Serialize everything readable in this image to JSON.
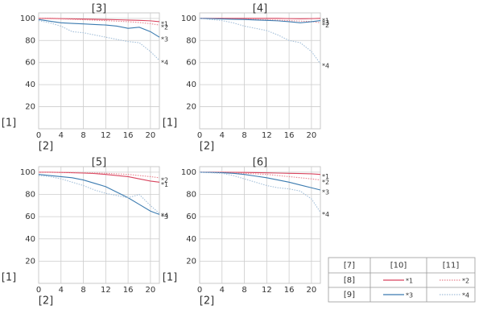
{
  "chart_data": [
    {
      "type": "line",
      "title": "[3]",
      "x_label": "[2]",
      "y_label": "[1]",
      "x": [
        0,
        2,
        4,
        6,
        8,
        10,
        12,
        14,
        16,
        18,
        20,
        21.6
      ],
      "xlim": [
        0,
        21.6
      ],
      "xticks": [
        0,
        4,
        8,
        12,
        16,
        20
      ],
      "ylim": [
        0,
        105
      ],
      "yticks": [
        20,
        40,
        60,
        80,
        100
      ],
      "grid": true,
      "series": [
        {
          "name": "*1",
          "color": "#d9455f",
          "dashed": false,
          "values": [
            100,
            100,
            99.8,
            99.6,
            99.4,
            99.2,
            99,
            98.8,
            98.5,
            98.2,
            97.8,
            97
          ]
        },
        {
          "name": "*2",
          "color": "#e8848f",
          "dashed": true,
          "values": [
            100,
            99.8,
            99.5,
            99.2,
            98.8,
            98.4,
            98,
            97.5,
            97,
            96.3,
            95.2,
            94
          ]
        },
        {
          "name": "*3",
          "color": "#3b7bb0",
          "dashed": false,
          "values": [
            99,
            97.5,
            96,
            95.5,
            95,
            94.5,
            94,
            93,
            91,
            92,
            88,
            83
          ]
        },
        {
          "name": "*4",
          "color": "#a3bfd9",
          "dashed": true,
          "values": [
            98,
            96,
            93,
            88,
            87,
            85,
            83,
            81,
            79,
            78,
            70,
            62
          ]
        }
      ]
    },
    {
      "type": "line",
      "title": "[4]",
      "x_label": "[2]",
      "y_label": "[1]",
      "x": [
        0,
        2,
        4,
        6,
        8,
        10,
        12,
        14,
        16,
        18,
        20,
        21.6
      ],
      "xlim": [
        0,
        21.6
      ],
      "xticks": [
        0,
        4,
        8,
        12,
        16,
        20
      ],
      "ylim": [
        0,
        105
      ],
      "yticks": [
        20,
        40,
        60,
        80,
        100
      ],
      "grid": true,
      "series": [
        {
          "name": "*1",
          "color": "#d9455f",
          "dashed": false,
          "values": [
            100,
            100,
            100,
            100,
            100,
            100,
            100,
            100,
            99.8,
            99.7,
            99.8,
            100
          ]
        },
        {
          "name": "*2",
          "color": "#e8848f",
          "dashed": true,
          "values": [
            100,
            99.8,
            99.6,
            99.4,
            99.2,
            99,
            98.7,
            98.4,
            98,
            97.6,
            97.2,
            96
          ]
        },
        {
          "name": "*3",
          "color": "#3b7bb0",
          "dashed": false,
          "values": [
            100,
            99.8,
            99.5,
            99.2,
            99,
            98.6,
            98.2,
            97.8,
            97,
            96,
            97,
            98
          ]
        },
        {
          "name": "*4",
          "color": "#a3bfd9",
          "dashed": true,
          "values": [
            100,
            99,
            98,
            96,
            93,
            91,
            89,
            85,
            80,
            78,
            70,
            59
          ]
        }
      ]
    },
    {
      "type": "line",
      "title": "[5]",
      "x_label": "[2]",
      "y_label": "[1]",
      "x": [
        0,
        2,
        4,
        6,
        8,
        10,
        12,
        14,
        16,
        18,
        20,
        21.6
      ],
      "xlim": [
        0,
        21.6
      ],
      "xticks": [
        0,
        4,
        8,
        12,
        16,
        20
      ],
      "ylim": [
        0,
        105
      ],
      "yticks": [
        20,
        40,
        60,
        80,
        100
      ],
      "grid": true,
      "series": [
        {
          "name": "*1",
          "color": "#d9455f",
          "dashed": false,
          "values": [
            100,
            100,
            99.8,
            99.5,
            99.2,
            98.8,
            98,
            97,
            96,
            94,
            92,
            91
          ]
        },
        {
          "name": "*2",
          "color": "#e8848f",
          "dashed": true,
          "values": [
            100,
            100,
            99.9,
            99.8,
            99.6,
            99.3,
            99,
            98.5,
            98,
            97,
            96,
            95
          ]
        },
        {
          "name": "*3",
          "color": "#3b7bb0",
          "dashed": false,
          "values": [
            98,
            97,
            96,
            95,
            93,
            90,
            87,
            82,
            77,
            71,
            65,
            62
          ]
        },
        {
          "name": "*4",
          "color": "#a3bfd9",
          "dashed": true,
          "values": [
            97,
            96,
            94,
            91,
            88,
            84,
            81,
            79,
            77,
            80,
            70,
            63
          ]
        }
      ]
    },
    {
      "type": "line",
      "title": "[6]",
      "x_label": "[2]",
      "y_label": "[1]",
      "x": [
        0,
        2,
        4,
        6,
        8,
        10,
        12,
        14,
        16,
        18,
        20,
        21.6
      ],
      "xlim": [
        0,
        21.6
      ],
      "xticks": [
        0,
        4,
        8,
        12,
        16,
        20
      ],
      "ylim": [
        0,
        105
      ],
      "yticks": [
        20,
        40,
        60,
        80,
        100
      ],
      "grid": true,
      "series": [
        {
          "name": "*1",
          "color": "#d9455f",
          "dashed": false,
          "values": [
            100,
            100,
            100,
            99.9,
            99.8,
            99.6,
            99.4,
            99.2,
            99,
            98.8,
            98.5,
            98
          ]
        },
        {
          "name": "*2",
          "color": "#e8848f",
          "dashed": true,
          "values": [
            100,
            100,
            99.8,
            99.5,
            99,
            98.5,
            98,
            97,
            96,
            95,
            94,
            93
          ]
        },
        {
          "name": "*3",
          "color": "#3b7bb0",
          "dashed": false,
          "values": [
            100,
            99.8,
            99.5,
            99,
            98,
            96.5,
            95,
            93,
            91,
            88.5,
            86,
            84
          ]
        },
        {
          "name": "*4",
          "color": "#a3bfd9",
          "dashed": true,
          "values": [
            100,
            99.5,
            99,
            97,
            94,
            91,
            88,
            86,
            85,
            83,
            76,
            64
          ]
        }
      ]
    }
  ],
  "legend_table": {
    "header": [
      "[7]",
      "[10]",
      "[11]"
    ],
    "rows": [
      "[8]",
      "[9]"
    ]
  }
}
